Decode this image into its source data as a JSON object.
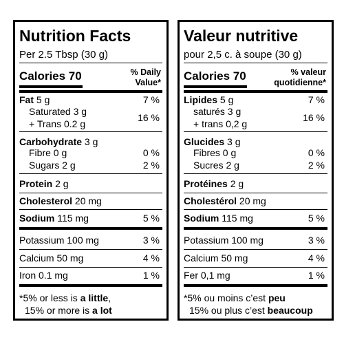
{
  "panels": [
    {
      "title": "Nutrition Facts",
      "serving": "Per 2.5 Tbsp (30 g)",
      "calories": "Calories 70",
      "dv_header": [
        "% Daily",
        "Value*"
      ],
      "rows": [
        {
          "name": "Fat",
          "amount": "5 g",
          "dv": "7 %",
          "bold": true
        },
        {
          "lines": [
            "Saturated 3 g",
            "+ Trans 0.2 g"
          ],
          "dv": "16 %",
          "indent": true
        },
        {
          "name": "Carbohydrate",
          "amount": "3 g",
          "bold": true
        },
        {
          "name": "Fibre 0 g",
          "dv": "0 %",
          "indent": true
        },
        {
          "name": "Sugars 2 g",
          "dv": "2 %",
          "indent": true
        },
        {
          "name": "Protein",
          "amount": "2 g",
          "bold": true
        },
        {
          "name": "Cholesterol",
          "amount": "20 mg",
          "bold": true
        },
        {
          "name": "Sodium",
          "amount": "115 mg",
          "dv": "5 %",
          "bold": true
        },
        {
          "name": "Potassium 100 mg",
          "dv": "3 %"
        },
        {
          "name": "Calcium 50 mg",
          "dv": "4 %"
        },
        {
          "name": "Iron 0.1 mg",
          "dv": "1 %"
        }
      ],
      "footnote": [
        [
          {
            "text": "*5% or less is "
          },
          {
            "text": "a little",
            "bold": true
          },
          {
            "text": ","
          }
        ],
        [
          {
            "text": "15% or more is "
          },
          {
            "text": "a lot",
            "bold": true
          }
        ]
      ]
    },
    {
      "title": "Valeur nutritive",
      "serving": "pour 2,5 c. à soupe (30 g)",
      "calories": "Calories 70",
      "dv_header": [
        "% valeur",
        "quotidienne*"
      ],
      "rows": [
        {
          "name": "Lipides",
          "amount": "5 g",
          "dv": "7 %",
          "bold": true
        },
        {
          "lines": [
            "saturés 3 g",
            "+ trans 0,2 g"
          ],
          "dv": "16 %",
          "indent": true
        },
        {
          "name": "Glucides",
          "amount": "3 g",
          "bold": true
        },
        {
          "name": "Fibres 0 g",
          "dv": "0 %",
          "indent": true
        },
        {
          "name": "Sucres 2 g",
          "dv": "2 %",
          "indent": true
        },
        {
          "name": "Protéines",
          "amount": "2 g",
          "bold": true
        },
        {
          "name": "Cholestérol",
          "amount": "20 mg",
          "bold": true
        },
        {
          "name": "Sodium",
          "amount": "115 mg",
          "dv": "5 %",
          "bold": true
        },
        {
          "name": "Potassium 100 mg",
          "dv": "3 %"
        },
        {
          "name": "Calcium 50 mg",
          "dv": "4 %"
        },
        {
          "name": "Fer 0,1 mg",
          "dv": "1 %"
        }
      ],
      "footnote": [
        [
          {
            "text": "*5% ou moins c’est "
          },
          {
            "text": "peu",
            "bold": true
          }
        ],
        [
          {
            "text": "15% ou plus c’est "
          },
          {
            "text": "beaucoup",
            "bold": true
          }
        ]
      ]
    }
  ]
}
